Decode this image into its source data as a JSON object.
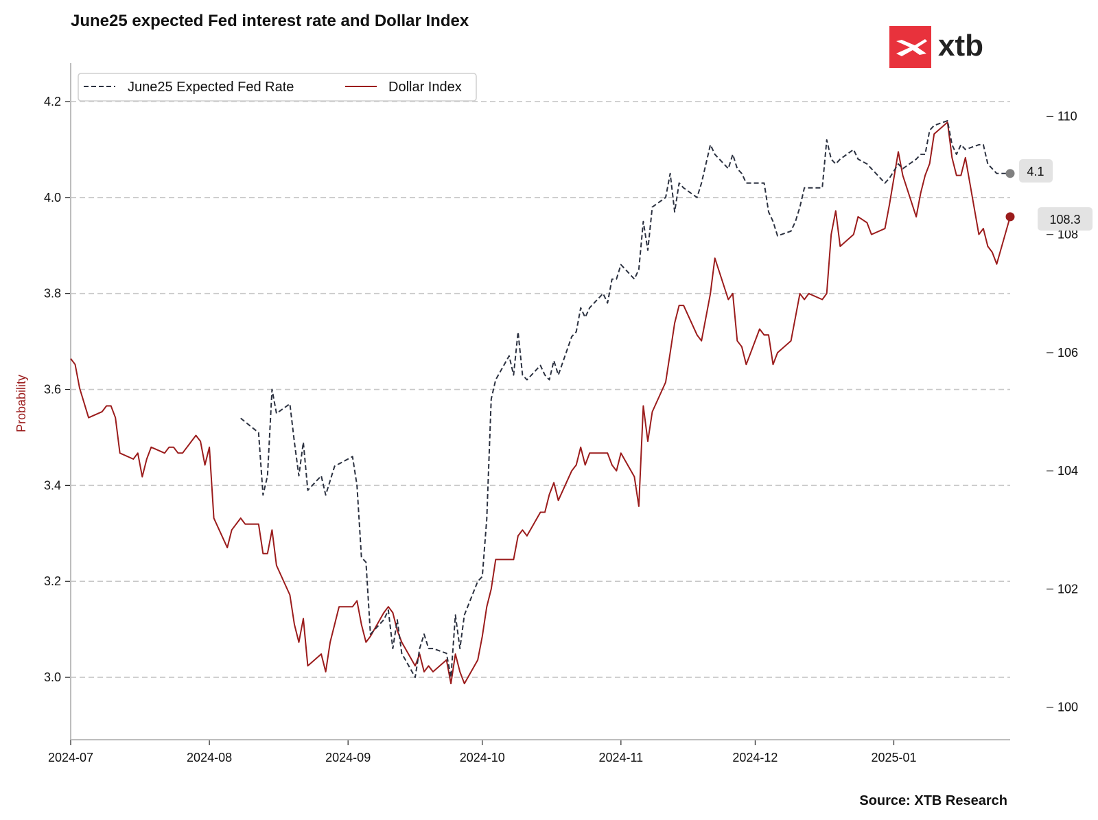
{
  "title": "June25 expected Fed interest rate and Dollar Index",
  "source": "Source: XTB Research",
  "logo": {
    "text": "xtb",
    "color": "#e8323c"
  },
  "colors": {
    "fed": "#2b3140",
    "dxy": "#9b1c1c",
    "fed_marker": "#808080",
    "grid": "#c8c8c8",
    "axis": "#bdbdbd"
  },
  "chart_data": {
    "type": "line",
    "title": "June25 expected Fed interest rate and Dollar Index",
    "ylabel": "Probability",
    "legend": {
      "placement": "top-left",
      "entries": [
        "June25 Expected Fed Rate",
        "Dollar Index"
      ]
    },
    "grid": "horizontal dashed",
    "x_range": [
      "2024-07-01",
      "2025-01-27"
    ],
    "x_ticks": [
      "2024-07",
      "2024-08",
      "2024-09",
      "2024-10",
      "2024-11",
      "2024-12",
      "2025-01"
    ],
    "y_left": {
      "range": [
        2.87,
        4.28
      ],
      "ticks": [
        "3.0",
        "3.2",
        "3.4",
        "3.6",
        "3.8",
        "4.0",
        "4.2"
      ]
    },
    "y_right": {
      "range": [
        99.45,
        110.9
      ],
      "ticks": [
        "100",
        "102",
        "104",
        "106",
        "108",
        "110"
      ]
    },
    "series": [
      {
        "name": "June25 Expected Fed Rate",
        "axis": "left",
        "style": "dashed",
        "last_value_label": "4.1",
        "points": [
          [
            "2024-08-08",
            3.54
          ],
          [
            "2024-08-12",
            3.51
          ],
          [
            "2024-08-13",
            3.38
          ],
          [
            "2024-08-14",
            3.42
          ],
          [
            "2024-08-15",
            3.6
          ],
          [
            "2024-08-16",
            3.55
          ],
          [
            "2024-08-19",
            3.57
          ],
          [
            "2024-08-20",
            3.49
          ],
          [
            "2024-08-21",
            3.42
          ],
          [
            "2024-08-22",
            3.49
          ],
          [
            "2024-08-23",
            3.39
          ],
          [
            "2024-08-26",
            3.42
          ],
          [
            "2024-08-27",
            3.38
          ],
          [
            "2024-08-28",
            3.41
          ],
          [
            "2024-08-29",
            3.44
          ],
          [
            "2024-09-02",
            3.46
          ],
          [
            "2024-09-03",
            3.4
          ],
          [
            "2024-09-04",
            3.25
          ],
          [
            "2024-09-05",
            3.24
          ],
          [
            "2024-09-06",
            3.09
          ],
          [
            "2024-09-09",
            3.12
          ],
          [
            "2024-09-10",
            3.14
          ],
          [
            "2024-09-11",
            3.06
          ],
          [
            "2024-09-12",
            3.12
          ],
          [
            "2024-09-13",
            3.05
          ],
          [
            "2024-09-16",
            3.0
          ],
          [
            "2024-09-17",
            3.06
          ],
          [
            "2024-09-18",
            3.09
          ],
          [
            "2024-09-19",
            3.06
          ],
          [
            "2024-09-20",
            3.06
          ],
          [
            "2024-09-23",
            3.05
          ],
          [
            "2024-09-24",
            3.0
          ],
          [
            "2024-09-25",
            3.13
          ],
          [
            "2024-09-26",
            3.06
          ],
          [
            "2024-09-27",
            3.13
          ],
          [
            "2024-09-30",
            3.2
          ],
          [
            "2024-10-01",
            3.21
          ],
          [
            "2024-10-02",
            3.33
          ],
          [
            "2024-10-03",
            3.58
          ],
          [
            "2024-10-04",
            3.62
          ],
          [
            "2024-10-07",
            3.67
          ],
          [
            "2024-10-08",
            3.63
          ],
          [
            "2024-10-09",
            3.72
          ],
          [
            "2024-10-10",
            3.63
          ],
          [
            "2024-10-11",
            3.62
          ],
          [
            "2024-10-14",
            3.65
          ],
          [
            "2024-10-15",
            3.63
          ],
          [
            "2024-10-16",
            3.62
          ],
          [
            "2024-10-17",
            3.66
          ],
          [
            "2024-10-18",
            3.63
          ],
          [
            "2024-10-21",
            3.71
          ],
          [
            "2024-10-22",
            3.72
          ],
          [
            "2024-10-23",
            3.77
          ],
          [
            "2024-10-24",
            3.75
          ],
          [
            "2024-10-25",
            3.77
          ],
          [
            "2024-10-28",
            3.8
          ],
          [
            "2024-10-29",
            3.78
          ],
          [
            "2024-10-30",
            3.83
          ],
          [
            "2024-10-31",
            3.83
          ],
          [
            "2024-11-01",
            3.86
          ],
          [
            "2024-11-04",
            3.83
          ],
          [
            "2024-11-05",
            3.85
          ],
          [
            "2024-11-06",
            3.95
          ],
          [
            "2024-11-07",
            3.89
          ],
          [
            "2024-11-08",
            3.98
          ],
          [
            "2024-11-11",
            4.0
          ],
          [
            "2024-11-12",
            4.05
          ],
          [
            "2024-11-13",
            3.97
          ],
          [
            "2024-11-14",
            4.03
          ],
          [
            "2024-11-15",
            4.02
          ],
          [
            "2024-11-18",
            4.0
          ],
          [
            "2024-11-19",
            4.03
          ],
          [
            "2024-11-20",
            4.07
          ],
          [
            "2024-11-21",
            4.11
          ],
          [
            "2024-11-22",
            4.09
          ],
          [
            "2024-11-25",
            4.06
          ],
          [
            "2024-11-26",
            4.09
          ],
          [
            "2024-11-27",
            4.06
          ],
          [
            "2024-11-28",
            4.05
          ],
          [
            "2024-11-29",
            4.03
          ],
          [
            "2024-12-02",
            4.03
          ],
          [
            "2024-12-03",
            4.03
          ],
          [
            "2024-12-04",
            3.97
          ],
          [
            "2024-12-05",
            3.95
          ],
          [
            "2024-12-06",
            3.92
          ],
          [
            "2024-12-09",
            3.93
          ],
          [
            "2024-12-10",
            3.95
          ],
          [
            "2024-12-11",
            3.98
          ],
          [
            "2024-12-12",
            4.02
          ],
          [
            "2024-12-16",
            4.02
          ],
          [
            "2024-12-17",
            4.12
          ],
          [
            "2024-12-18",
            4.08
          ],
          [
            "2024-12-19",
            4.07
          ],
          [
            "2024-12-20",
            4.08
          ],
          [
            "2024-12-23",
            4.1
          ],
          [
            "2024-12-24",
            4.08
          ],
          [
            "2024-12-26",
            4.07
          ],
          [
            "2024-12-27",
            4.06
          ],
          [
            "2024-12-30",
            4.03
          ],
          [
            "2024-12-31",
            4.04
          ],
          [
            "2025-01-02",
            4.07
          ],
          [
            "2025-01-03",
            4.06
          ],
          [
            "2025-01-06",
            4.08
          ],
          [
            "2025-01-07",
            4.09
          ],
          [
            "2025-01-08",
            4.09
          ],
          [
            "2025-01-09",
            4.14
          ],
          [
            "2025-01-10",
            4.15
          ],
          [
            "2025-01-13",
            4.16
          ],
          [
            "2025-01-14",
            4.11
          ],
          [
            "2025-01-15",
            4.09
          ],
          [
            "2025-01-16",
            4.11
          ],
          [
            "2025-01-17",
            4.1
          ],
          [
            "2025-01-20",
            4.11
          ],
          [
            "2025-01-21",
            4.11
          ],
          [
            "2025-01-22",
            4.07
          ],
          [
            "2025-01-23",
            4.06
          ],
          [
            "2025-01-24",
            4.05
          ],
          [
            "2025-01-27",
            4.05
          ]
        ]
      },
      {
        "name": "Dollar Index",
        "axis": "right",
        "style": "solid",
        "last_value_label": "108.3",
        "points": [
          [
            "2024-07-01",
            105.9
          ],
          [
            "2024-07-02",
            105.8
          ],
          [
            "2024-07-03",
            105.4
          ],
          [
            "2024-07-05",
            104.9
          ],
          [
            "2024-07-08",
            105.0
          ],
          [
            "2024-07-09",
            105.1
          ],
          [
            "2024-07-10",
            105.1
          ],
          [
            "2024-07-11",
            104.9
          ],
          [
            "2024-07-12",
            104.3
          ],
          [
            "2024-07-15",
            104.2
          ],
          [
            "2024-07-16",
            104.3
          ],
          [
            "2024-07-17",
            103.9
          ],
          [
            "2024-07-18",
            104.2
          ],
          [
            "2024-07-19",
            104.4
          ],
          [
            "2024-07-22",
            104.3
          ],
          [
            "2024-07-23",
            104.4
          ],
          [
            "2024-07-24",
            104.4
          ],
          [
            "2024-07-25",
            104.3
          ],
          [
            "2024-07-26",
            104.3
          ],
          [
            "2024-07-29",
            104.6
          ],
          [
            "2024-07-30",
            104.5
          ],
          [
            "2024-07-31",
            104.1
          ],
          [
            "2024-08-01",
            104.4
          ],
          [
            "2024-08-02",
            103.2
          ],
          [
            "2024-08-05",
            102.7
          ],
          [
            "2024-08-06",
            103.0
          ],
          [
            "2024-08-07",
            103.1
          ],
          [
            "2024-08-08",
            103.2
          ],
          [
            "2024-08-09",
            103.1
          ],
          [
            "2024-08-12",
            103.1
          ],
          [
            "2024-08-13",
            102.6
          ],
          [
            "2024-08-14",
            102.6
          ],
          [
            "2024-08-15",
            103.0
          ],
          [
            "2024-08-16",
            102.4
          ],
          [
            "2024-08-19",
            101.9
          ],
          [
            "2024-08-20",
            101.4
          ],
          [
            "2024-08-21",
            101.1
          ],
          [
            "2024-08-22",
            101.5
          ],
          [
            "2024-08-23",
            100.7
          ],
          [
            "2024-08-26",
            100.9
          ],
          [
            "2024-08-27",
            100.6
          ],
          [
            "2024-08-28",
            101.1
          ],
          [
            "2024-08-29",
            101.4
          ],
          [
            "2024-08-30",
            101.7
          ],
          [
            "2024-09-02",
            101.7
          ],
          [
            "2024-09-03",
            101.8
          ],
          [
            "2024-09-04",
            101.4
          ],
          [
            "2024-09-05",
            101.1
          ],
          [
            "2024-09-06",
            101.2
          ],
          [
            "2024-09-09",
            101.6
          ],
          [
            "2024-09-10",
            101.7
          ],
          [
            "2024-09-11",
            101.6
          ],
          [
            "2024-09-12",
            101.3
          ],
          [
            "2024-09-13",
            101.1
          ],
          [
            "2024-09-16",
            100.7
          ],
          [
            "2024-09-17",
            100.9
          ],
          [
            "2024-09-18",
            100.6
          ],
          [
            "2024-09-19",
            100.7
          ],
          [
            "2024-09-20",
            100.6
          ],
          [
            "2024-09-23",
            100.8
          ],
          [
            "2024-09-24",
            100.4
          ],
          [
            "2024-09-25",
            100.9
          ],
          [
            "2024-09-26",
            100.6
          ],
          [
            "2024-09-27",
            100.4
          ],
          [
            "2024-09-30",
            100.8
          ],
          [
            "2024-10-01",
            101.2
          ],
          [
            "2024-10-02",
            101.7
          ],
          [
            "2024-10-03",
            102.0
          ],
          [
            "2024-10-04",
            102.5
          ],
          [
            "2024-10-07",
            102.5
          ],
          [
            "2024-10-08",
            102.5
          ],
          [
            "2024-10-09",
            102.9
          ],
          [
            "2024-10-10",
            103.0
          ],
          [
            "2024-10-11",
            102.9
          ],
          [
            "2024-10-14",
            103.3
          ],
          [
            "2024-10-15",
            103.3
          ],
          [
            "2024-10-16",
            103.6
          ],
          [
            "2024-10-17",
            103.8
          ],
          [
            "2024-10-18",
            103.5
          ],
          [
            "2024-10-21",
            104.0
          ],
          [
            "2024-10-22",
            104.1
          ],
          [
            "2024-10-23",
            104.4
          ],
          [
            "2024-10-24",
            104.1
          ],
          [
            "2024-10-25",
            104.3
          ],
          [
            "2024-10-28",
            104.3
          ],
          [
            "2024-10-29",
            104.3
          ],
          [
            "2024-10-30",
            104.1
          ],
          [
            "2024-10-31",
            104.0
          ],
          [
            "2024-11-01",
            104.3
          ],
          [
            "2024-11-04",
            103.9
          ],
          [
            "2024-11-05",
            103.4
          ],
          [
            "2024-11-06",
            105.1
          ],
          [
            "2024-11-07",
            104.5
          ],
          [
            "2024-11-08",
            105.0
          ],
          [
            "2024-11-11",
            105.5
          ],
          [
            "2024-11-12",
            106.0
          ],
          [
            "2024-11-13",
            106.5
          ],
          [
            "2024-11-14",
            106.8
          ],
          [
            "2024-11-15",
            106.8
          ],
          [
            "2024-11-18",
            106.3
          ],
          [
            "2024-11-19",
            106.2
          ],
          [
            "2024-11-20",
            106.6
          ],
          [
            "2024-11-21",
            107.0
          ],
          [
            "2024-11-22",
            107.6
          ],
          [
            "2024-11-25",
            106.9
          ],
          [
            "2024-11-26",
            107.0
          ],
          [
            "2024-11-27",
            106.2
          ],
          [
            "2024-11-28",
            106.1
          ],
          [
            "2024-11-29",
            105.8
          ],
          [
            "2024-12-02",
            106.4
          ],
          [
            "2024-12-03",
            106.3
          ],
          [
            "2024-12-04",
            106.3
          ],
          [
            "2024-12-05",
            105.8
          ],
          [
            "2024-12-06",
            106.0
          ],
          [
            "2024-12-09",
            106.2
          ],
          [
            "2024-12-10",
            106.6
          ],
          [
            "2024-12-11",
            107.0
          ],
          [
            "2024-12-12",
            106.9
          ],
          [
            "2024-12-13",
            107.0
          ],
          [
            "2024-12-16",
            106.9
          ],
          [
            "2024-12-17",
            107.0
          ],
          [
            "2024-12-18",
            108.0
          ],
          [
            "2024-12-19",
            108.4
          ],
          [
            "2024-12-20",
            107.8
          ],
          [
            "2024-12-23",
            108.0
          ],
          [
            "2024-12-24",
            108.3
          ],
          [
            "2024-12-26",
            108.2
          ],
          [
            "2024-12-27",
            108.0
          ],
          [
            "2024-12-30",
            108.1
          ],
          [
            "2024-12-31",
            108.5
          ],
          [
            "2025-01-02",
            109.4
          ],
          [
            "2025-01-03",
            109.0
          ],
          [
            "2025-01-06",
            108.3
          ],
          [
            "2025-01-07",
            108.7
          ],
          [
            "2025-01-08",
            109.0
          ],
          [
            "2025-01-09",
            109.2
          ],
          [
            "2025-01-10",
            109.7
          ],
          [
            "2025-01-13",
            109.9
          ],
          [
            "2025-01-14",
            109.3
          ],
          [
            "2025-01-15",
            109.0
          ],
          [
            "2025-01-16",
            109.0
          ],
          [
            "2025-01-17",
            109.3
          ],
          [
            "2025-01-20",
            108.0
          ],
          [
            "2025-01-21",
            108.1
          ],
          [
            "2025-01-22",
            107.8
          ],
          [
            "2025-01-23",
            107.7
          ],
          [
            "2025-01-24",
            107.5
          ],
          [
            "2025-01-27",
            108.3
          ]
        ]
      }
    ]
  }
}
